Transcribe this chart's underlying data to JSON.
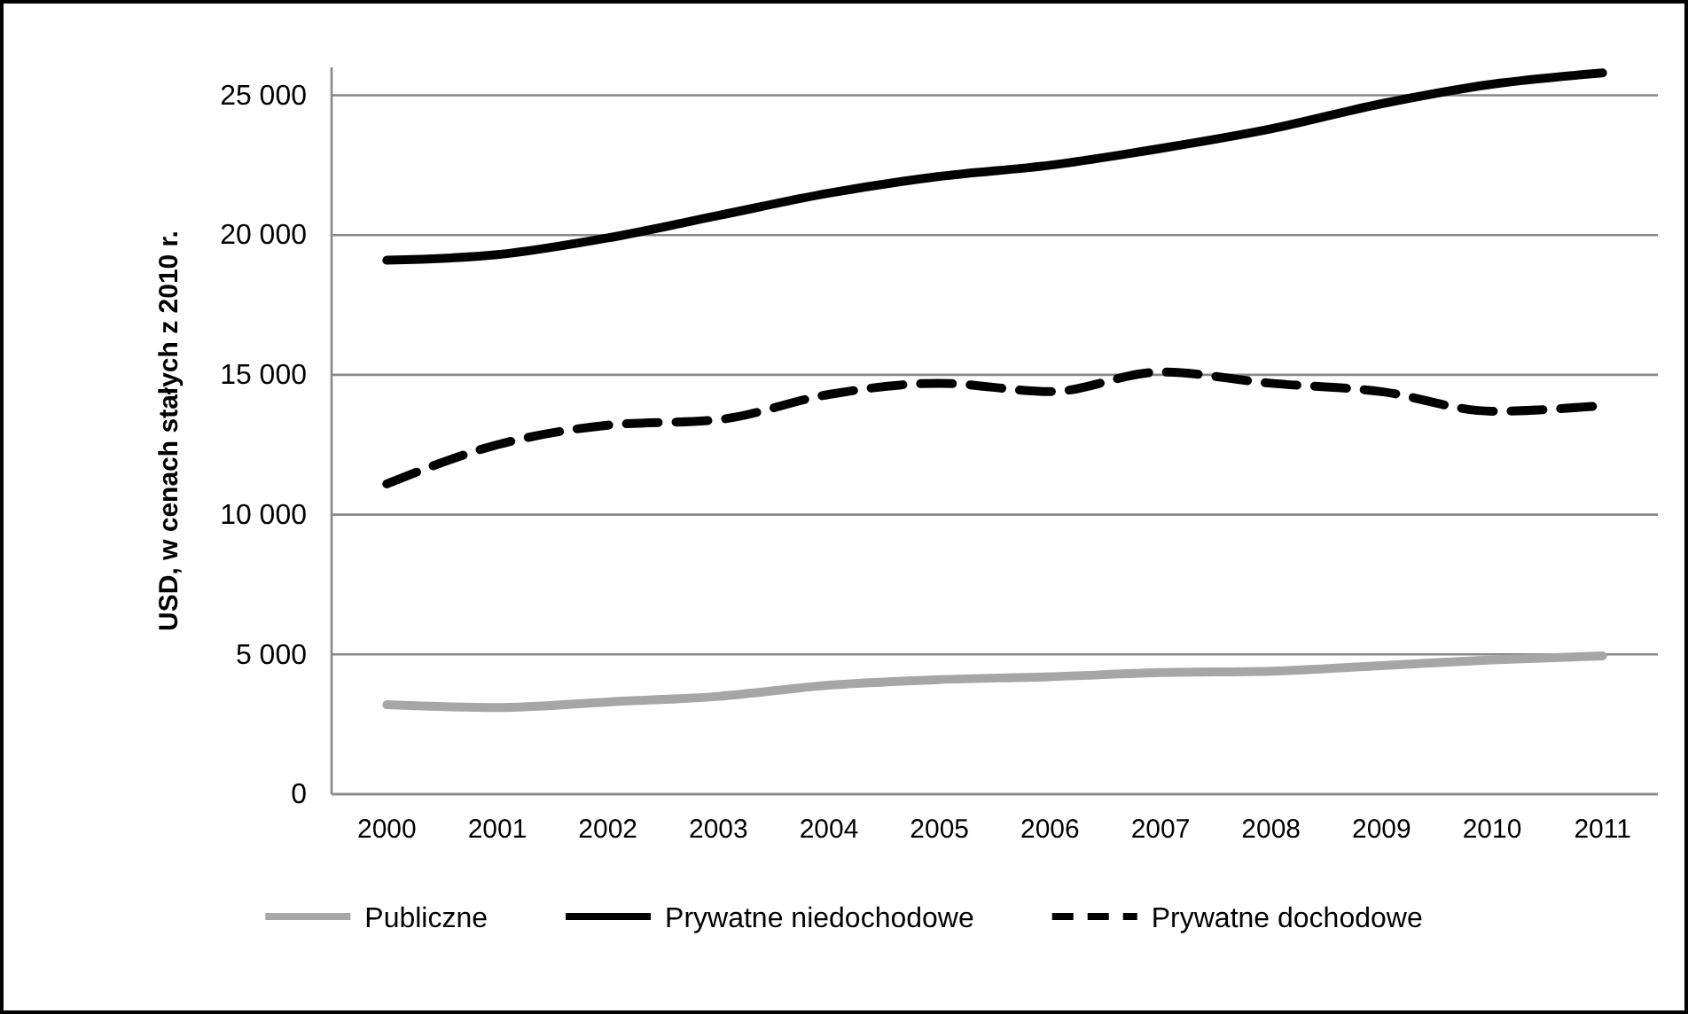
{
  "chart_data": {
    "type": "line",
    "ylabel": "USD, w cenach stałych z 2010 r.",
    "categories": [
      "2000",
      "2001",
      "2002",
      "2003",
      "2004",
      "2005",
      "2006",
      "2007",
      "2008",
      "2009",
      "2010",
      "2011"
    ],
    "ylim": [
      0,
      26000
    ],
    "yticks": [
      {
        "value": 0,
        "label": "0"
      },
      {
        "value": 5000,
        "label": "5 000"
      },
      {
        "value": 10000,
        "label": "10 000"
      },
      {
        "value": 15000,
        "label": "15 000"
      },
      {
        "value": 20000,
        "label": "20 000"
      },
      {
        "value": 25000,
        "label": "25 000"
      }
    ],
    "grid": "y",
    "legend": "bottom",
    "series": [
      {
        "name": "Publiczne",
        "color": "#a6a6a6",
        "line_style": "solid",
        "values": [
          3200,
          3100,
          3300,
          3500,
          3900,
          4100,
          4200,
          4350,
          4400,
          4600,
          4800,
          4950
        ]
      },
      {
        "name": "Prywatne niedochodowe",
        "color": "#000000",
        "line_style": "solid",
        "values": [
          19100,
          19300,
          19900,
          20700,
          21500,
          22100,
          22500,
          23100,
          23800,
          24700,
          25400,
          25800
        ]
      },
      {
        "name": "Prywatne dochodowe",
        "color": "#000000",
        "line_style": "dashed",
        "values": [
          11100,
          12500,
          13200,
          13400,
          14300,
          14700,
          14400,
          15100,
          14700,
          14400,
          13700,
          13900
        ]
      }
    ]
  }
}
